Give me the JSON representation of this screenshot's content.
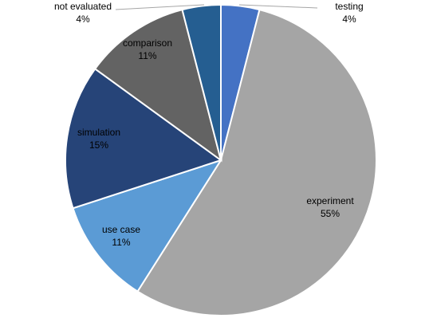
{
  "chart_data": {
    "type": "pie",
    "title": "",
    "start_angle_deg": 0,
    "direction": "clockwise",
    "slice_border_color": "#ffffff",
    "slices": [
      {
        "label": "testing",
        "percent_label": "4%",
        "value": 4,
        "color": "#4472C4"
      },
      {
        "label": "experiment",
        "percent_label": "55%",
        "value": 55,
        "color": "#A5A5A5"
      },
      {
        "label": "use case",
        "percent_label": "11%",
        "value": 11,
        "color": "#5B9BD5"
      },
      {
        "label": "simulation",
        "percent_label": "15%",
        "value": 15,
        "color": "#264478"
      },
      {
        "label": "comparison",
        "percent_label": "11%",
        "value": 11,
        "color": "#636363"
      },
      {
        "label": "not evaluated",
        "percent_label": "4%",
        "value": 4,
        "color": "#255E91"
      }
    ]
  }
}
